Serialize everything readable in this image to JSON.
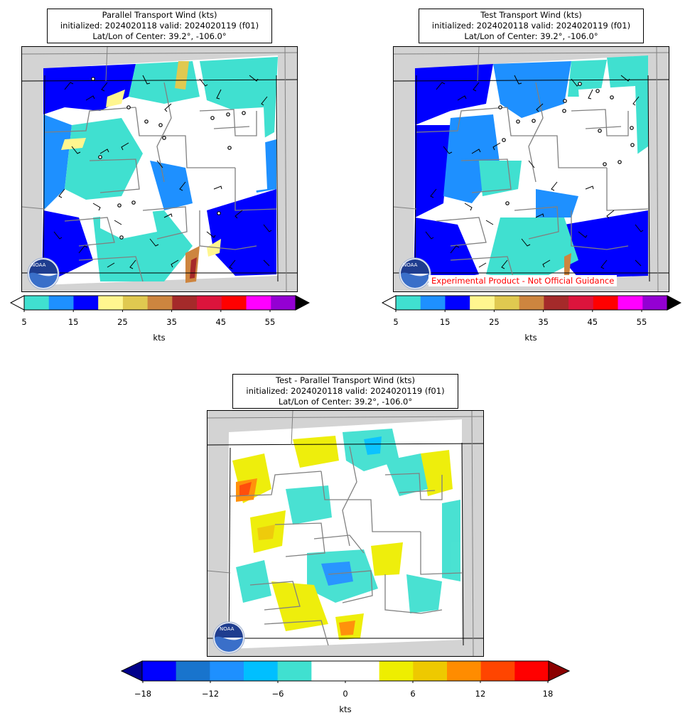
{
  "panels": {
    "parallel": {
      "title_line1": "Parallel Transport Wind (kts)",
      "title_line2": "initialized: 2024020118 valid: 2024020119 (f01)",
      "title_line3": "Lat/Lon of Center: 39.2°, -106.0°",
      "colorbar": {
        "ticks": [
          "5",
          "15",
          "25",
          "35",
          "45",
          "55"
        ],
        "unit": "kts",
        "colors": [
          "#40e0d0",
          "#1e90ff",
          "#0000ff",
          "#fff68f",
          "#e0c950",
          "#cd853f",
          "#a52a2a",
          "#dc143c",
          "#ff0000",
          "#ff00ff",
          "#9400d3"
        ],
        "under_color": "#ffffff",
        "over_color": "#000000"
      }
    },
    "test": {
      "title_line1": "Test Transport Wind (kts)",
      "title_line2": "initialized: 2024020118 valid: 2024020119 (f01)",
      "title_line3": "Lat/Lon of Center: 39.2°, -106.0°",
      "disclaimer": "Experimental Product - Not Official Guidance",
      "colorbar": {
        "ticks": [
          "5",
          "15",
          "25",
          "35",
          "45",
          "55"
        ],
        "unit": "kts",
        "colors": [
          "#40e0d0",
          "#1e90ff",
          "#0000ff",
          "#fff68f",
          "#e0c950",
          "#cd853f",
          "#a52a2a",
          "#dc143c",
          "#ff0000",
          "#ff00ff",
          "#9400d3"
        ],
        "under_color": "#ffffff",
        "over_color": "#000000"
      }
    },
    "difference": {
      "title_line1": "Test - Parallel Transport Wind (kts)",
      "title_line2": "initialized: 2024020118 valid: 2024020119 (f01)",
      "title_line3": "Lat/Lon of Center: 39.2°, -106.0°",
      "colorbar": {
        "ticks": [
          "−18",
          "−12",
          "−6",
          "0",
          "6",
          "12",
          "18"
        ],
        "unit": "kts",
        "colors": [
          "#0000ff",
          "#1874cd",
          "#1e90ff",
          "#00bfff",
          "#40e0d0",
          "#ffffff",
          "#ffffff",
          "#eeee00",
          "#eec900",
          "#ff8c00",
          "#ff4500",
          "#ff0000"
        ],
        "under_color": "#00008b",
        "over_color": "#8b0000"
      }
    }
  },
  "logo": {
    "text": "NOAA"
  },
  "colors": {
    "background_outside": "#d3d3d3",
    "borders": "#808080",
    "barbs": "#000000"
  }
}
